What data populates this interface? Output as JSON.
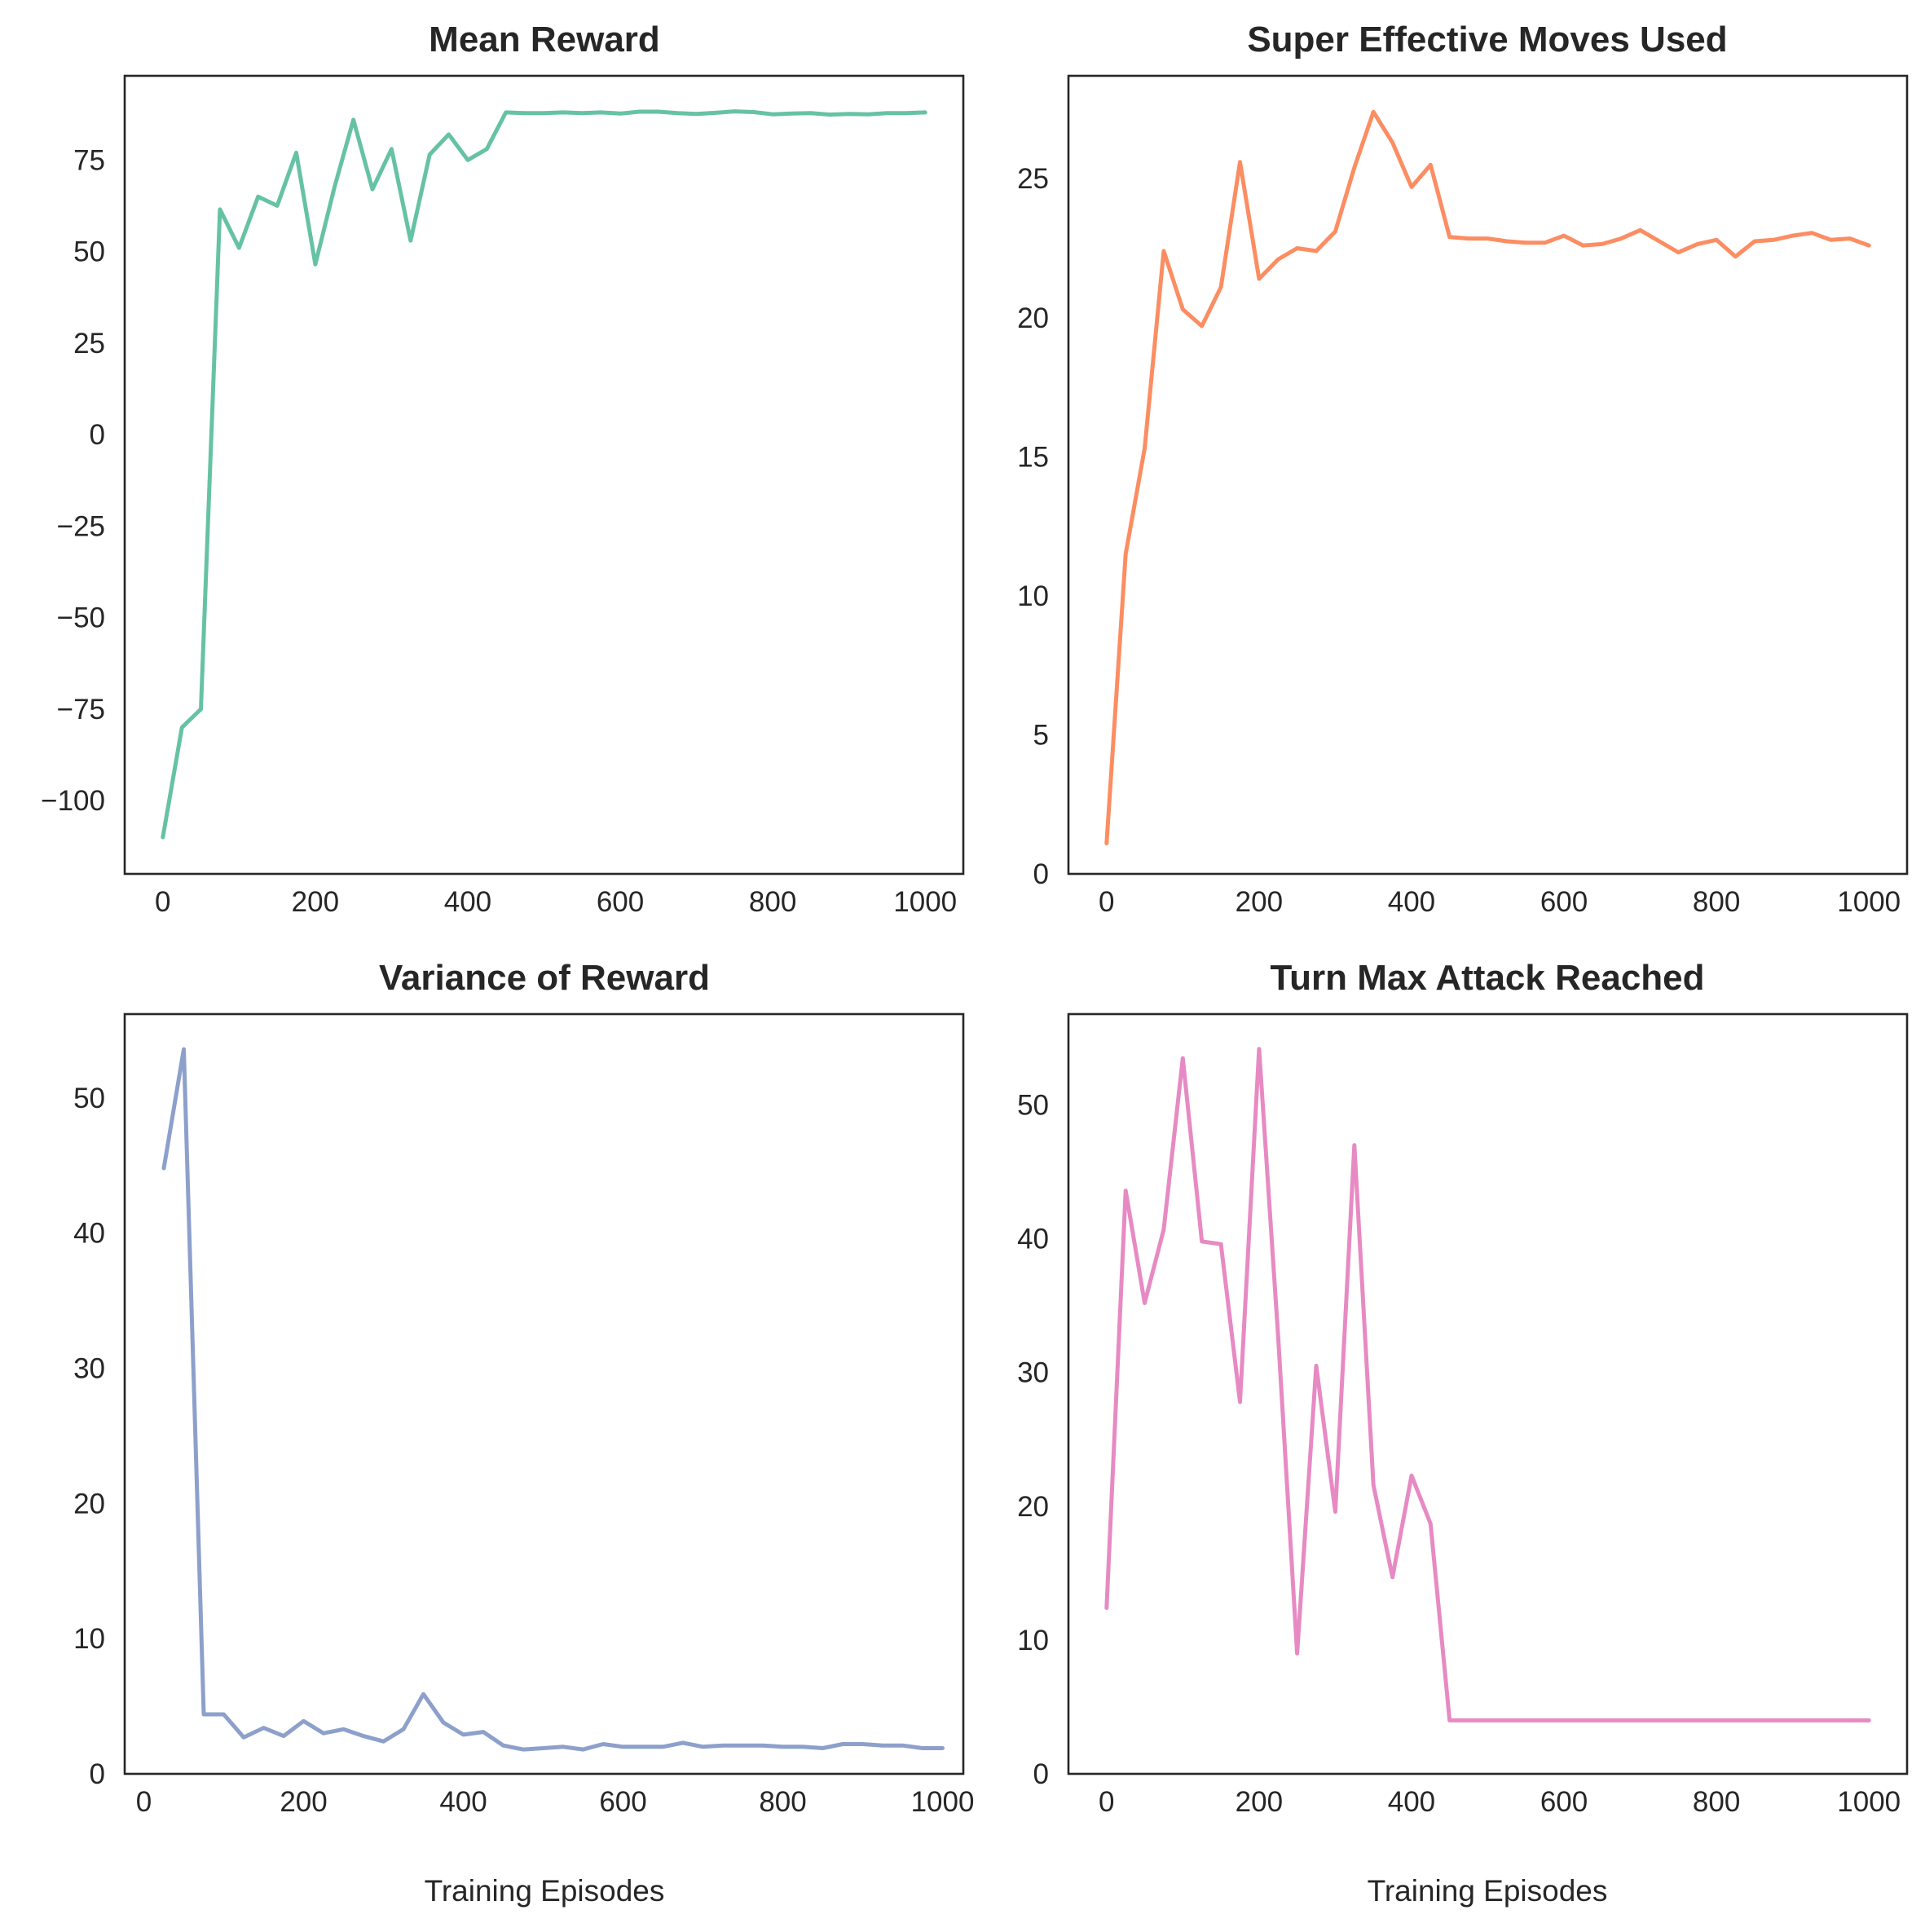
{
  "chart_data": [
    {
      "type": "line",
      "title": "Mean Reward",
      "xlabel": "",
      "ylabel": "",
      "color": "#66c2a5",
      "xlim": [
        -50,
        1050
      ],
      "ylim": [
        -120,
        98
      ],
      "xticks": [
        0,
        200,
        400,
        600,
        800,
        1000
      ],
      "yticks": [
        -100,
        -75,
        -50,
        -25,
        0,
        25,
        50,
        75
      ],
      "ytick_labels": [
        "−100",
        "−75",
        "−50",
        "−25",
        "0",
        "25",
        "50",
        "75"
      ],
      "xtick_labels": [
        "0",
        "200",
        "400",
        "600",
        "800",
        "1000"
      ],
      "x": [
        0,
        25,
        50,
        75,
        100,
        125,
        150,
        175,
        200,
        225,
        250,
        275,
        300,
        325,
        350,
        375,
        400,
        425,
        450,
        475,
        500,
        525,
        550,
        575,
        600,
        625,
        650,
        675,
        700,
        725,
        750,
        775,
        800,
        825,
        850,
        875,
        900,
        925,
        950,
        975,
        1000
      ],
      "y": [
        -110,
        -80,
        -75,
        61.5,
        51,
        65,
        62.5,
        77,
        46.5,
        67.5,
        86,
        67,
        78,
        53,
        76.5,
        82,
        75,
        78,
        88,
        87.8,
        87.8,
        88,
        87.8,
        88,
        87.7,
        88.2,
        88.2,
        87.8,
        87.6,
        87.9,
        88.3,
        88.1,
        87.5,
        87.7,
        87.8,
        87.4,
        87.6,
        87.5,
        87.8,
        87.8,
        88
      ]
    },
    {
      "type": "line",
      "title": "Super Effective Moves Used",
      "xlabel": "",
      "ylabel": "",
      "color": "#fc8d62",
      "xlim": [
        -50,
        1050
      ],
      "ylim": [
        0,
        28.7
      ],
      "xticks": [
        0,
        200,
        400,
        600,
        800,
        1000
      ],
      "yticks": [
        0,
        5,
        10,
        15,
        20,
        25
      ],
      "ytick_labels": [
        "0",
        "5",
        "10",
        "15",
        "20",
        "25"
      ],
      "xtick_labels": [
        "0",
        "200",
        "400",
        "600",
        "800",
        "1000"
      ],
      "x": [
        0,
        25,
        50,
        75,
        100,
        125,
        150,
        175,
        200,
        225,
        250,
        275,
        300,
        325,
        350,
        375,
        400,
        425,
        450,
        475,
        500,
        525,
        550,
        575,
        600,
        625,
        650,
        675,
        700,
        725,
        750,
        775,
        800,
        825,
        850,
        875,
        900,
        925,
        950,
        975,
        1000
      ],
      "y": [
        1.1,
        11.5,
        15.3,
        22.4,
        20.3,
        19.7,
        21.1,
        25.6,
        21.4,
        22.1,
        22.5,
        22.4,
        23.1,
        25.4,
        27.4,
        26.3,
        24.7,
        25.5,
        22.9,
        22.85,
        22.85,
        22.75,
        22.7,
        22.7,
        22.95,
        22.6,
        22.65,
        22.85,
        23.15,
        22.75,
        22.35,
        22.65,
        22.8,
        22.2,
        22.75,
        22.8,
        22.95,
        23.05,
        22.8,
        22.85,
        22.6
      ]
    },
    {
      "type": "line",
      "title": "Variance of Reward",
      "xlabel": "Training Episodes",
      "ylabel": "",
      "color": "#8da0cb",
      "xlim": [
        -24,
        1026
      ],
      "ylim": [
        0,
        56.2
      ],
      "xticks": [
        0,
        200,
        400,
        600,
        800,
        1000
      ],
      "yticks": [
        0,
        10,
        20,
        30,
        40,
        50
      ],
      "ytick_labels": [
        "0",
        "10",
        "20",
        "30",
        "40",
        "50"
      ],
      "xtick_labels": [
        "0",
        "200",
        "400",
        "600",
        "800",
        "1000"
      ],
      "x": [
        25,
        50,
        75,
        100,
        125,
        150,
        175,
        200,
        225,
        250,
        275,
        300,
        325,
        350,
        375,
        400,
        425,
        450,
        475,
        500,
        525,
        550,
        575,
        600,
        625,
        650,
        675,
        700,
        725,
        750,
        775,
        800,
        825,
        850,
        875,
        900,
        925,
        950,
        975,
        1000
      ],
      "y": [
        44.8,
        53.6,
        4.4,
        4.4,
        2.7,
        3.4,
        2.8,
        3.9,
        3.0,
        3.3,
        2.8,
        2.4,
        3.3,
        5.9,
        3.8,
        2.9,
        3.1,
        2.1,
        1.8,
        1.9,
        2.0,
        1.8,
        2.2,
        2.0,
        2.0,
        2.0,
        2.3,
        2.0,
        2.1,
        2.1,
        2.1,
        2.0,
        2.0,
        1.9,
        2.2,
        2.2,
        2.1,
        2.1,
        1.9,
        1.9
      ]
    },
    {
      "type": "line",
      "title": "Turn Max Attack Reached",
      "xlabel": "Training Episodes",
      "ylabel": "",
      "color": "#e78ac3",
      "xlim": [
        -50,
        1050
      ],
      "ylim": [
        0,
        56.8
      ],
      "xticks": [
        0,
        200,
        400,
        600,
        800,
        1000
      ],
      "yticks": [
        0,
        10,
        20,
        30,
        40,
        50
      ],
      "ytick_labels": [
        "0",
        "10",
        "20",
        "30",
        "40",
        "50"
      ],
      "xtick_labels": [
        "0",
        "200",
        "400",
        "600",
        "800",
        "1000"
      ],
      "x": [
        0,
        25,
        50,
        75,
        100,
        125,
        150,
        175,
        200,
        225,
        250,
        275,
        300,
        325,
        350,
        375,
        400,
        425,
        450,
        475,
        500,
        525,
        550,
        575,
        600,
        625,
        650,
        675,
        700,
        725,
        750,
        775,
        800,
        825,
        850,
        875,
        900,
        925,
        950,
        975,
        1000
      ],
      "y": [
        12.4,
        43.6,
        35.2,
        40.7,
        53.5,
        39.8,
        39.6,
        27.8,
        54.2,
        32.7,
        9.0,
        30.5,
        19.6,
        47.0,
        21.6,
        14.7,
        22.3,
        18.7,
        4.0,
        4.0,
        4.0,
        4.0,
        4.0,
        4.0,
        4.0,
        4.0,
        4.0,
        4.0,
        4.0,
        4.0,
        4.0,
        4.0,
        4.0,
        4.0,
        4.0,
        4.0,
        4.0,
        4.0,
        4.0,
        4.0,
        4.0
      ]
    }
  ]
}
